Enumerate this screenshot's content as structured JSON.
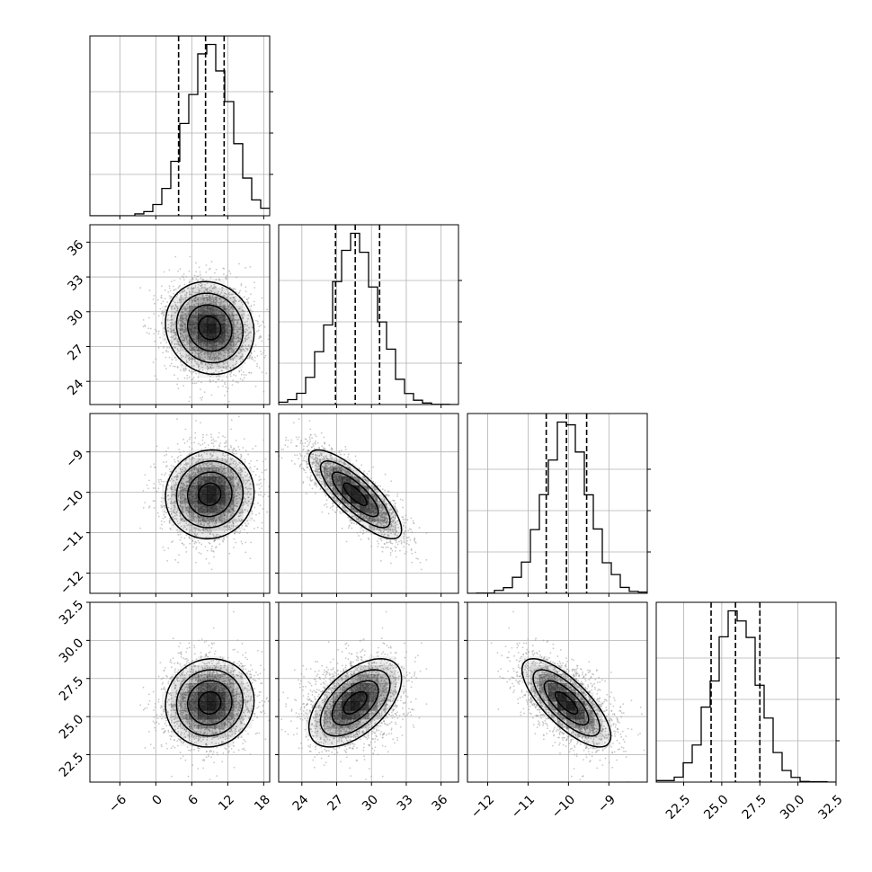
{
  "chart_data": {
    "type": "corner",
    "title": "",
    "grid": true,
    "variables": [
      {
        "ticks": [
          -6,
          0,
          6,
          12,
          18
        ],
        "tick_labels": [
          "−6",
          "0",
          "6",
          "12",
          "18"
        ],
        "range": [
          -11,
          19
        ],
        "mean": 9,
        "sd": 3.7,
        "quantiles": [
          3.8,
          8.3,
          11.4
        ]
      },
      {
        "ticks": [
          24,
          27,
          30,
          33,
          36
        ],
        "tick_labels": [
          "24",
          "27",
          "30",
          "33",
          "36"
        ],
        "range": [
          22,
          37.5
        ],
        "mean": 28.6,
        "sd": 2.0,
        "quantiles": [
          26.9,
          28.6,
          30.7
        ]
      },
      {
        "ticks": [
          -12,
          -11,
          -10,
          -9
        ],
        "tick_labels": [
          "−12",
          "−11",
          "−10",
          "−9"
        ],
        "range": [
          -12.5,
          -8.05
        ],
        "mean": -10.05,
        "sd": 0.55,
        "quantiles": [
          -10.55,
          -10.05,
          -9.55
        ]
      },
      {
        "ticks": [
          22.5,
          25.0,
          27.5,
          30.0,
          32.5
        ],
        "tick_labels": [
          "22.5",
          "25.0",
          "27.5",
          "30.0",
          "32.5"
        ],
        "range": [
          20.7,
          32.5
        ],
        "mean": 25.9,
        "sd": 1.45,
        "quantiles": [
          24.3,
          25.9,
          27.5
        ]
      }
    ],
    "correlations": {
      "1-0": -0.1,
      "2-0": 0.05,
      "2-1": -0.8,
      "3-0": 0.05,
      "3-1": 0.55,
      "3-2": -0.75
    },
    "histogram_bins": 20,
    "contour_levels": [
      0.118,
      0.393,
      0.675,
      0.864
    ],
    "colors": {
      "line": "#000000",
      "grid": "#b0b0b0",
      "scatter": "#9a9a9a",
      "density": "#000000"
    }
  }
}
